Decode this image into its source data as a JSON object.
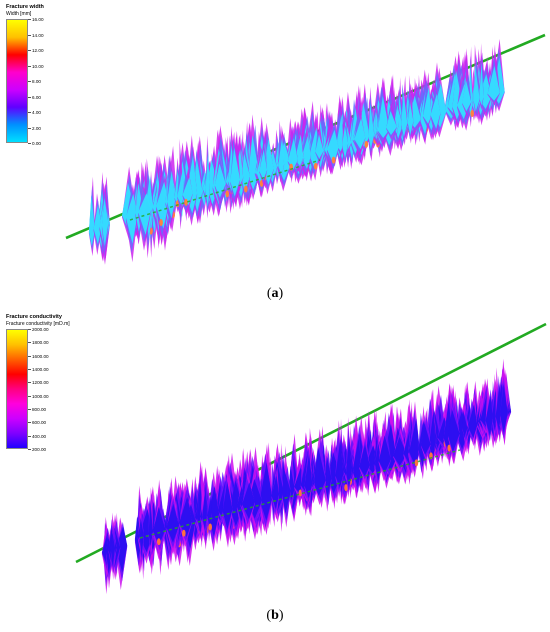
{
  "panels": [
    {
      "caption_open": "(",
      "caption_letter": "a",
      "caption_close": ")",
      "legend": {
        "title": "Fracture width",
        "subtitle": "Width [mm]",
        "ticks": [
          "16.00",
          "14.00",
          "12.00",
          "10.00",
          "8.00",
          "6.00",
          "4.00",
          "2.00",
          "0.00"
        ],
        "colors": [
          "#ffff00",
          "#ffc000",
          "#ff0000",
          "#ff00cc",
          "#cc00ff",
          "#6000ff",
          "#0090ff",
          "#00e0ff"
        ]
      },
      "palette": {
        "base": "#33e0ff",
        "mid": "#6070ff",
        "low": "#cc22ee",
        "hot": "#ff8040"
      }
    },
    {
      "caption_open": "(",
      "caption_letter": "b",
      "caption_close": ")",
      "legend": {
        "title": "Fracture conductivity",
        "subtitle": "Fracture conductivity [mD.m]",
        "ticks": [
          "2000.00",
          "1800.00",
          "1600.00",
          "1400.00",
          "1200.00",
          "1000.00",
          "800.00",
          "600.00",
          "400.00",
          "200.00"
        ],
        "colors": [
          "#ffff00",
          "#ffc000",
          "#ff6000",
          "#ff0000",
          "#ff0080",
          "#ff00dd",
          "#cc00ff",
          "#8000ff",
          "#2000ff"
        ]
      },
      "palette": {
        "base": "#2a10f0",
        "mid": "#6010ff",
        "low": "#cc10ee",
        "hot": "#ff7040"
      }
    }
  ],
  "colors": {
    "wellbore": "#22aa22"
  }
}
